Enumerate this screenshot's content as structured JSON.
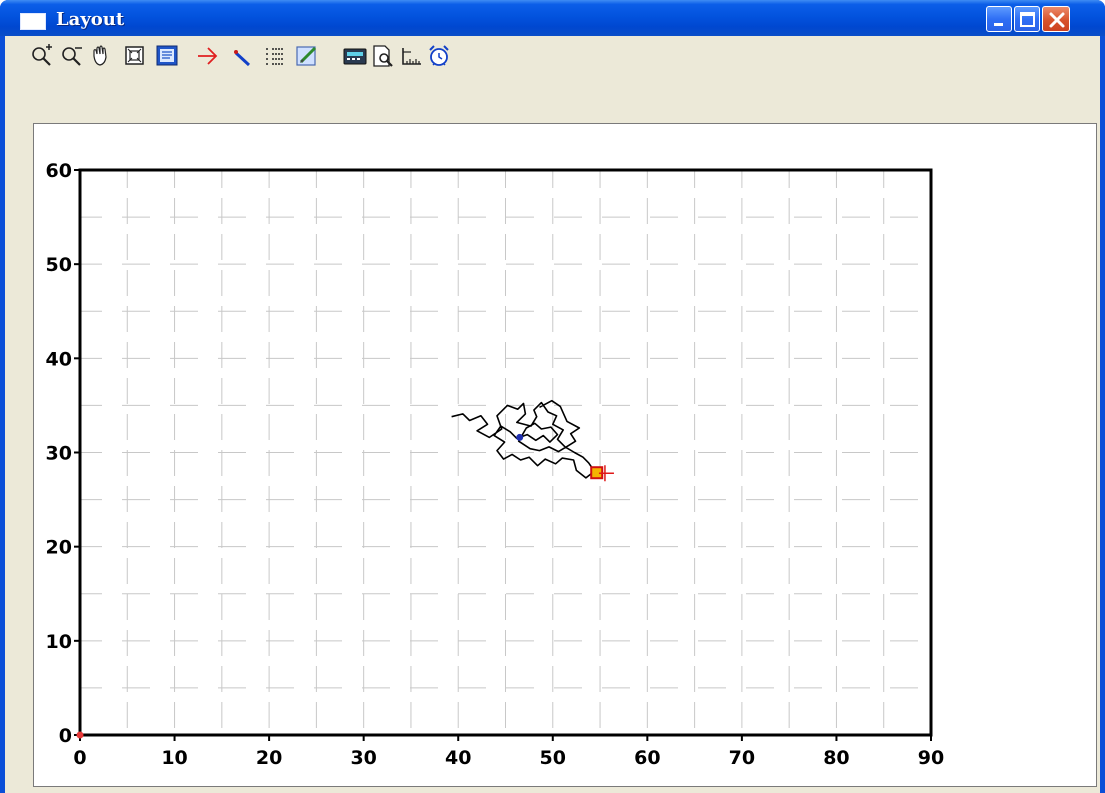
{
  "window": {
    "title": "Layout",
    "controls": {
      "minimize": "minimize",
      "maximize": "maximize",
      "close": "close"
    }
  },
  "toolbar": {
    "tools": [
      {
        "icon": "zoom-in-icon",
        "left": 0
      },
      {
        "icon": "zoom-out-icon",
        "left": 0
      },
      {
        "icon": "pan-hand-icon",
        "left": 0
      },
      {
        "icon": "zoom-fit-icon",
        "left": 0
      },
      {
        "icon": "layout-view-icon",
        "left": 0
      },
      {
        "icon": "arrow-right-icon",
        "left": 0
      },
      {
        "icon": "pointer-icon",
        "left": 0
      },
      {
        "icon": "list-icon",
        "left": 0
      },
      {
        "icon": "edit-icon",
        "left": 0
      },
      {
        "icon": "calculator-icon",
        "left": 0
      },
      {
        "icon": "print-preview-icon",
        "left": 0
      },
      {
        "icon": "ruler-icon",
        "left": 0
      },
      {
        "icon": "alarm-clock-icon",
        "left": 0
      }
    ]
  },
  "chart_data": {
    "type": "line",
    "title": "",
    "xlabel": "",
    "ylabel": "",
    "xlim": [
      0,
      90
    ],
    "ylim": [
      0,
      60
    ],
    "x_ticks": [
      "0",
      "10",
      "20",
      "30",
      "40",
      "50",
      "60",
      "70",
      "80",
      "90"
    ],
    "y_ticks": [
      "0",
      "10",
      "20",
      "30",
      "40",
      "50",
      "60"
    ],
    "grid": true,
    "series": [
      {
        "color": "#000000",
        "points": [
          [
            39.3,
            33.8
          ],
          [
            40.5,
            34.1
          ],
          [
            41.2,
            33.4
          ],
          [
            42.4,
            33.9
          ],
          [
            43.1,
            33.0
          ],
          [
            42.0,
            32.3
          ],
          [
            43.3,
            31.6
          ],
          [
            44.6,
            32.5
          ],
          [
            44.1,
            33.9
          ],
          [
            45.2,
            35.0
          ],
          [
            46.3,
            34.6
          ],
          [
            46.9,
            35.2
          ],
          [
            47.1,
            34.1
          ],
          [
            46.2,
            33.2
          ],
          [
            47.7,
            32.8
          ],
          [
            48.3,
            33.8
          ],
          [
            48.0,
            34.5
          ],
          [
            48.8,
            35.3
          ],
          [
            49.5,
            34.3
          ],
          [
            50.4,
            33.9
          ],
          [
            50.0,
            33.0
          ],
          [
            51.1,
            32.4
          ],
          [
            50.5,
            31.4
          ],
          [
            51.3,
            30.6
          ],
          [
            52.3,
            30.0
          ],
          [
            53.2,
            29.5
          ],
          [
            53.8,
            28.9
          ],
          [
            54.4,
            28.0
          ],
          [
            53.5,
            27.3
          ],
          [
            52.5,
            28.1
          ],
          [
            52.2,
            29.2
          ],
          [
            51.0,
            29.4
          ],
          [
            50.3,
            28.8
          ],
          [
            49.2,
            29.3
          ],
          [
            48.4,
            28.6
          ],
          [
            47.5,
            29.5
          ],
          [
            46.6,
            29.2
          ],
          [
            45.7,
            29.8
          ],
          [
            44.8,
            29.3
          ],
          [
            44.1,
            30.2
          ],
          [
            44.9,
            31.1
          ],
          [
            43.8,
            31.8
          ],
          [
            44.5,
            32.8
          ],
          [
            45.5,
            32.2
          ],
          [
            46.2,
            31.5
          ],
          [
            47.3,
            31.9
          ],
          [
            48.2,
            31.3
          ],
          [
            49.0,
            31.8
          ],
          [
            49.7,
            31.1
          ],
          [
            50.5,
            31.9
          ],
          [
            49.8,
            32.7
          ],
          [
            48.8,
            32.5
          ],
          [
            48.1,
            33.1
          ],
          [
            47.2,
            32.6
          ],
          [
            46.4,
            31.2
          ],
          [
            47.6,
            30.4
          ],
          [
            48.6,
            30.2
          ],
          [
            49.6,
            30.6
          ],
          [
            50.6,
            30.1
          ],
          [
            51.6,
            30.7
          ],
          [
            52.4,
            31.2
          ],
          [
            51.9,
            32.0
          ],
          [
            52.8,
            32.6
          ],
          [
            51.5,
            33.3
          ],
          [
            50.8,
            34.9
          ],
          [
            49.9,
            35.5
          ],
          [
            48.6,
            34.8
          ]
        ]
      }
    ],
    "markers": [
      {
        "shape": "dot",
        "x": 46.5,
        "y": 31.6,
        "color": "#1f2fb0"
      },
      {
        "shape": "square",
        "x": 54.7,
        "y": 27.8,
        "color": "#f5b400",
        "border": "#d01010"
      },
      {
        "shape": "cross",
        "x": 55.2,
        "y": 27.8,
        "color": "#e01818"
      },
      {
        "shape": "dot",
        "x": 0,
        "y": 0,
        "color": "#e83a3a"
      }
    ]
  }
}
